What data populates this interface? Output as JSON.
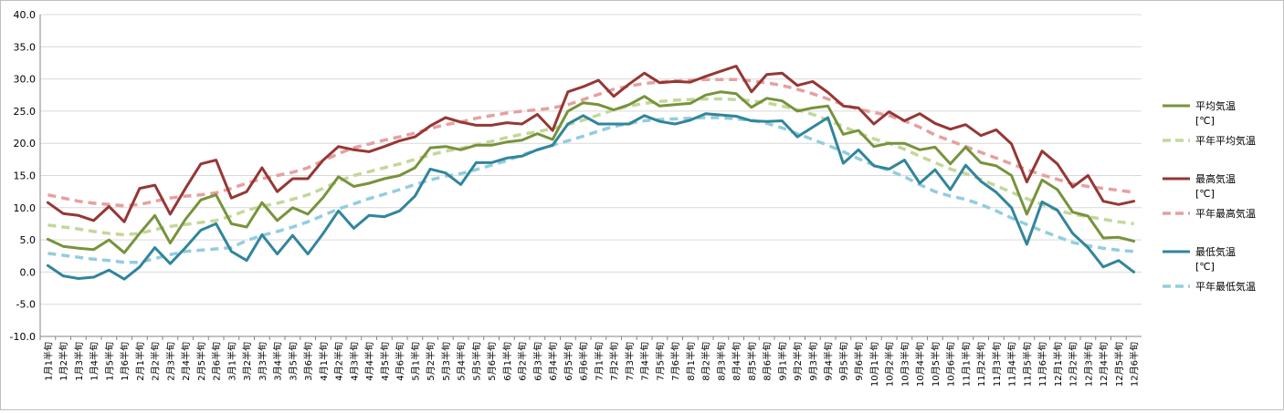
{
  "chart_data": {
    "type": "line",
    "ylim": [
      -10,
      40
    ],
    "yticks": [
      "40.0",
      "35.0",
      "30.0",
      "25.0",
      "20.0",
      "15.0",
      "10.0",
      "5.0",
      "0.0",
      "-5.0",
      "-10.0"
    ],
    "grid": "horizontal",
    "legend_position": "right",
    "categories": [
      "1月1半旬",
      "1月2半旬",
      "1月3半旬",
      "1月4半旬",
      "1月5半旬",
      "1月6半旬",
      "2月1半旬",
      "2月2半旬",
      "2月3半旬",
      "2月4半旬",
      "2月5半旬",
      "2月6半旬",
      "3月1半旬",
      "3月2半旬",
      "3月3半旬",
      "3月4半旬",
      "3月5半旬",
      "3月6半旬",
      "4月1半旬",
      "4月2半旬",
      "4月3半旬",
      "4月4半旬",
      "4月5半旬",
      "4月6半旬",
      "5月1半旬",
      "5月2半旬",
      "5月3半旬",
      "5月4半旬",
      "5月5半旬",
      "5月6半旬",
      "6月1半旬",
      "6月2半旬",
      "6月3半旬",
      "6月4半旬",
      "6月5半旬",
      "6月6半旬",
      "7月1半旬",
      "7月2半旬",
      "7月3半旬",
      "7月4半旬",
      "7月5半旬",
      "7月6半旬",
      "8月1半旬",
      "8月2半旬",
      "8月3半旬",
      "8月4半旬",
      "8月5半旬",
      "8月6半旬",
      "9月1半旬",
      "9月2半旬",
      "9月3半旬",
      "9月4半旬",
      "9月5半旬",
      "9月6半旬",
      "10月1半旬",
      "10月2半旬",
      "10月3半旬",
      "10月4半旬",
      "10月5半旬",
      "10月6半旬",
      "11月1半旬",
      "11月2半旬",
      "11月3半旬",
      "11月4半旬",
      "11月5半旬",
      "11月6半旬",
      "12月1半旬",
      "12月2半旬",
      "12月3半旬",
      "12月4半旬",
      "12月5半旬",
      "12月6半旬"
    ],
    "series": [
      {
        "name": "平均気温\n[℃]",
        "color": "#77933c",
        "style": "solid",
        "values": [
          5.1,
          4,
          3.7,
          3.5,
          5,
          3,
          6,
          8.8,
          4.5,
          8.2,
          11.2,
          12,
          7.5,
          7,
          10.8,
          8,
          10,
          9,
          11.6,
          14.8,
          13.3,
          13.8,
          14.5,
          15,
          16.2,
          19.3,
          19.5,
          19,
          19.7,
          19.7,
          20.2,
          20.5,
          21.5,
          20.6,
          25,
          26.3,
          26,
          25.2,
          26,
          27.3,
          25.8,
          26,
          26.2,
          27.5,
          28,
          27.7,
          25.6,
          27,
          26.6,
          25,
          25.5,
          25.8,
          21.4,
          22,
          19.5,
          20,
          20,
          19,
          19.4,
          16.8,
          19.4,
          17,
          16.5,
          15,
          9,
          14.3,
          12.8,
          9.3,
          8.7,
          5.3,
          5.4,
          4.8
        ]
      },
      {
        "name": "平年平均気温",
        "color": "#c4d79b",
        "style": "dashed",
        "values": [
          7.3,
          7,
          6.7,
          6.3,
          6,
          5.8,
          6,
          6.6,
          7.1,
          7.4,
          7.7,
          8,
          8.7,
          9.6,
          10.2,
          10.7,
          11.3,
          12,
          13,
          14.1,
          15,
          15.6,
          16.2,
          16.8,
          17.5,
          18.2,
          18.8,
          19.2,
          19.8,
          20.3,
          20.9,
          21.4,
          21.8,
          22.3,
          22.9,
          23.6,
          24.4,
          25.2,
          25.8,
          26.2,
          26.5,
          26.7,
          26.8,
          26.9,
          26.9,
          26.8,
          26.6,
          26.3,
          25.8,
          25.2,
          24.5,
          23.6,
          22.6,
          21.6,
          20.7,
          20,
          19.1,
          18,
          17,
          16,
          15.3,
          14.4,
          13.4,
          12.4,
          11.4,
          10.5,
          9.6,
          9,
          8.6,
          8.2,
          7.8,
          7.5
        ]
      },
      {
        "name": "最高気温\n[℃]",
        "color": "#953735",
        "style": "solid",
        "values": [
          10.8,
          9.1,
          8.8,
          8,
          10.2,
          7.8,
          13,
          13.5,
          9,
          13,
          16.8,
          17.4,
          11.5,
          12.5,
          16.2,
          12.5,
          14.5,
          14.5,
          17.4,
          19.5,
          19,
          18.7,
          19.5,
          20.4,
          21,
          22.7,
          24,
          23.3,
          22.8,
          22.8,
          23.2,
          23,
          24.5,
          22,
          28,
          28.8,
          29.8,
          27.3,
          29.2,
          30.9,
          29.4,
          29.6,
          29.5,
          30.4,
          31.2,
          32,
          28,
          30.7,
          30.9,
          29,
          29.6,
          27.9,
          25.8,
          25.5,
          23,
          24.9,
          23.5,
          24.6,
          23.1,
          22.2,
          22.9,
          21.2,
          22.1,
          19.9,
          14,
          18.8,
          16.8,
          13.2,
          15,
          11,
          10.5,
          11
        ]
      },
      {
        "name": "平年最高気温",
        "color": "#e6a0a0",
        "style": "dashed",
        "values": [
          12,
          11.5,
          11,
          10.7,
          10.5,
          10.3,
          10.5,
          11,
          11.5,
          11.8,
          12,
          12.3,
          13,
          13.8,
          14.5,
          15,
          15.5,
          16.2,
          17.3,
          18.4,
          19.3,
          19.9,
          20.5,
          21,
          21.6,
          22.3,
          22.9,
          23.3,
          23.9,
          24.3,
          24.7,
          25,
          25.2,
          25.5,
          26,
          26.8,
          27.6,
          28.4,
          28.9,
          29.3,
          29.5,
          29.7,
          29.8,
          29.9,
          29.9,
          29.9,
          29.7,
          29.4,
          29,
          28.4,
          27.7,
          26.9,
          26,
          25.3,
          24.8,
          24.3,
          23.5,
          22.5,
          21.3,
          20.4,
          19.5,
          18.6,
          17.7,
          16.8,
          15.9,
          15.1,
          14.4,
          13.7,
          13.3,
          13,
          12.7,
          12.4
        ]
      },
      {
        "name": "最低気温\n[℃]",
        "color": "#31859c",
        "style": "solid",
        "values": [
          1,
          -0.6,
          -1,
          -0.8,
          0.3,
          -1.1,
          0.8,
          3.8,
          1.3,
          3.8,
          6.5,
          7.5,
          3.2,
          1.8,
          5.8,
          2.8,
          5.7,
          2.8,
          6,
          9.5,
          6.8,
          8.8,
          8.6,
          9.5,
          11.8,
          16,
          15.4,
          13.6,
          17,
          17,
          17.7,
          18,
          19,
          19.7,
          23,
          24.3,
          23,
          23,
          23,
          24.3,
          23.4,
          23,
          23.6,
          24.6,
          24.4,
          24.2,
          23.5,
          23.4,
          23.5,
          21,
          22.5,
          24,
          16.9,
          19,
          16.5,
          16,
          17.4,
          13.8,
          15.9,
          12.8,
          16.6,
          14.1,
          12.4,
          10,
          4.3,
          10.9,
          9.6,
          6,
          3.8,
          0.8,
          1.8,
          0
        ]
      },
      {
        "name": "平年最低気温",
        "color": "#93cddd",
        "style": "dashed",
        "values": [
          2.9,
          2.6,
          2.3,
          2,
          1.8,
          1.5,
          1.5,
          2.1,
          2.7,
          3.2,
          3.4,
          3.6,
          3.8,
          4.9,
          5.7,
          6.3,
          7,
          7.8,
          8.8,
          9.8,
          10.6,
          11.4,
          12.1,
          12.8,
          13.6,
          14.3,
          14.9,
          15.3,
          15.9,
          16.6,
          17.3,
          18.2,
          19,
          19.7,
          20.4,
          21.1,
          21.9,
          22.6,
          23.1,
          23.5,
          23.7,
          23.8,
          23.9,
          24,
          24,
          23.8,
          23.6,
          23.1,
          22.4,
          21.5,
          20.6,
          19.7,
          18.7,
          17.6,
          16.6,
          15.8,
          14.8,
          13.6,
          12.5,
          11.8,
          11.3,
          10.5,
          9.5,
          8.4,
          7.4,
          6.4,
          5.5,
          4.6,
          4.1,
          3.7,
          3.4,
          3.2
        ]
      }
    ]
  }
}
